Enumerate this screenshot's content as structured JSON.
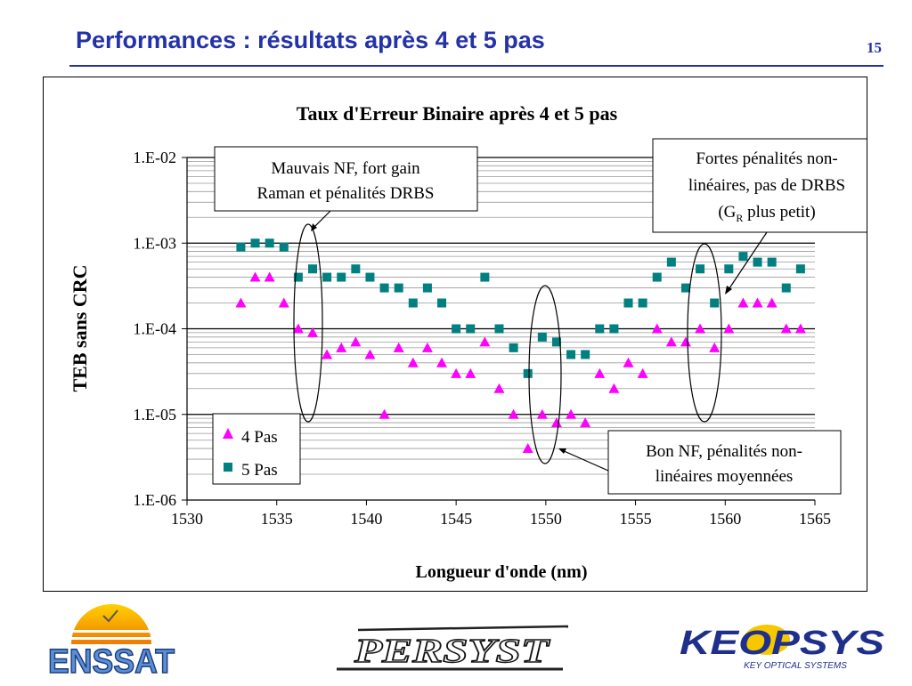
{
  "slide": {
    "title": "Performances : résultats après 4 et 5 pas",
    "page_number": "15"
  },
  "chart_data": {
    "type": "scatter",
    "title": "Taux d'Erreur Binaire après 4 et 5 pas",
    "xlabel": "Longueur d'onde (nm)",
    "ylabel": "TEB sans CRC",
    "xlim": [
      1530,
      1565
    ],
    "ylim": [
      1e-06,
      0.01
    ],
    "y_scale": "log",
    "x_ticks": [
      "1530",
      "1535",
      "1540",
      "1545",
      "1550",
      "1555",
      "1560",
      "1565"
    ],
    "y_ticks": [
      "1.E-06",
      "1.E-05",
      "1.E-04",
      "1.E-03",
      "1.E-02"
    ],
    "grid": "horizontal minor lines",
    "legend": "bottom-left",
    "series": [
      {
        "name": "4 Pas",
        "marker": "triangle",
        "color": "#ff00ff",
        "x": [
          1533.0,
          1533.8,
          1534.6,
          1535.4,
          1536.2,
          1537.0,
          1537.8,
          1538.6,
          1539.4,
          1540.2,
          1541.0,
          1541.8,
          1542.6,
          1543.4,
          1544.2,
          1545.0,
          1545.8,
          1546.6,
          1547.4,
          1548.2,
          1549.0,
          1549.8,
          1550.6,
          1551.4,
          1552.2,
          1553.0,
          1553.8,
          1554.6,
          1555.4,
          1556.2,
          1557.0,
          1557.8,
          1558.6,
          1559.4,
          1560.2,
          1561.0,
          1561.8,
          1562.6,
          1563.4,
          1564.2
        ],
        "y": [
          0.0002,
          0.0004,
          0.0004,
          0.0002,
          0.0001,
          9e-05,
          5e-05,
          6e-05,
          7e-05,
          5e-05,
          1e-05,
          6e-05,
          4e-05,
          6e-05,
          4e-05,
          3e-05,
          3e-05,
          7e-05,
          2e-05,
          1e-05,
          4e-06,
          1e-05,
          8e-06,
          1e-05,
          8e-06,
          3e-05,
          2e-05,
          4e-05,
          3e-05,
          0.0001,
          7e-05,
          7e-05,
          0.0001,
          6e-05,
          0.0001,
          0.0002,
          0.0002,
          0.0002,
          0.0001,
          0.0001
        ]
      },
      {
        "name": "5 Pas",
        "marker": "square",
        "color": "#008080",
        "x": [
          1533.0,
          1533.8,
          1534.6,
          1535.4,
          1536.2,
          1537.0,
          1537.8,
          1538.6,
          1539.4,
          1540.2,
          1541.0,
          1541.8,
          1542.6,
          1543.4,
          1544.2,
          1545.0,
          1545.8,
          1546.6,
          1547.4,
          1548.2,
          1549.0,
          1549.8,
          1550.6,
          1551.4,
          1552.2,
          1553.0,
          1553.8,
          1554.6,
          1555.4,
          1556.2,
          1557.0,
          1557.8,
          1558.6,
          1559.4,
          1560.2,
          1561.0,
          1561.8,
          1562.6,
          1563.4,
          1564.2
        ],
        "y": [
          0.0009,
          0.001,
          0.001,
          0.0009,
          0.0004,
          0.0005,
          0.0004,
          0.0004,
          0.0005,
          0.0004,
          0.0003,
          0.0003,
          0.0002,
          0.0003,
          0.0002,
          0.0001,
          0.0001,
          0.0004,
          0.0001,
          6e-05,
          3e-05,
          8e-05,
          7e-05,
          5e-05,
          5e-05,
          0.0001,
          0.0001,
          0.0002,
          0.0002,
          0.0004,
          0.0006,
          0.0003,
          0.0005,
          0.0002,
          0.0005,
          0.0007,
          0.0006,
          0.0006,
          0.0003,
          0.0005
        ]
      }
    ],
    "annotations": [
      {
        "lines": [
          "Mauvais NF, fort gain",
          "Raman et pénalités DRBS"
        ]
      },
      {
        "lines": [
          "Fortes pénalités non-",
          "linéaires, pas de DRBS"
        ],
        "last_line": {
          "before": "(G",
          "sub": "R",
          "after": " plus petit)"
        }
      },
      {
        "lines": [
          "Bon NF, pénalités non-",
          "linéaires moyennées"
        ]
      }
    ]
  },
  "logos": {
    "enssat": "ENSSAT",
    "persyst": "PERSYST",
    "keopsys": "KEOPSYS",
    "keopsys_tagline": "KEY OPTICAL SYSTEMS"
  }
}
